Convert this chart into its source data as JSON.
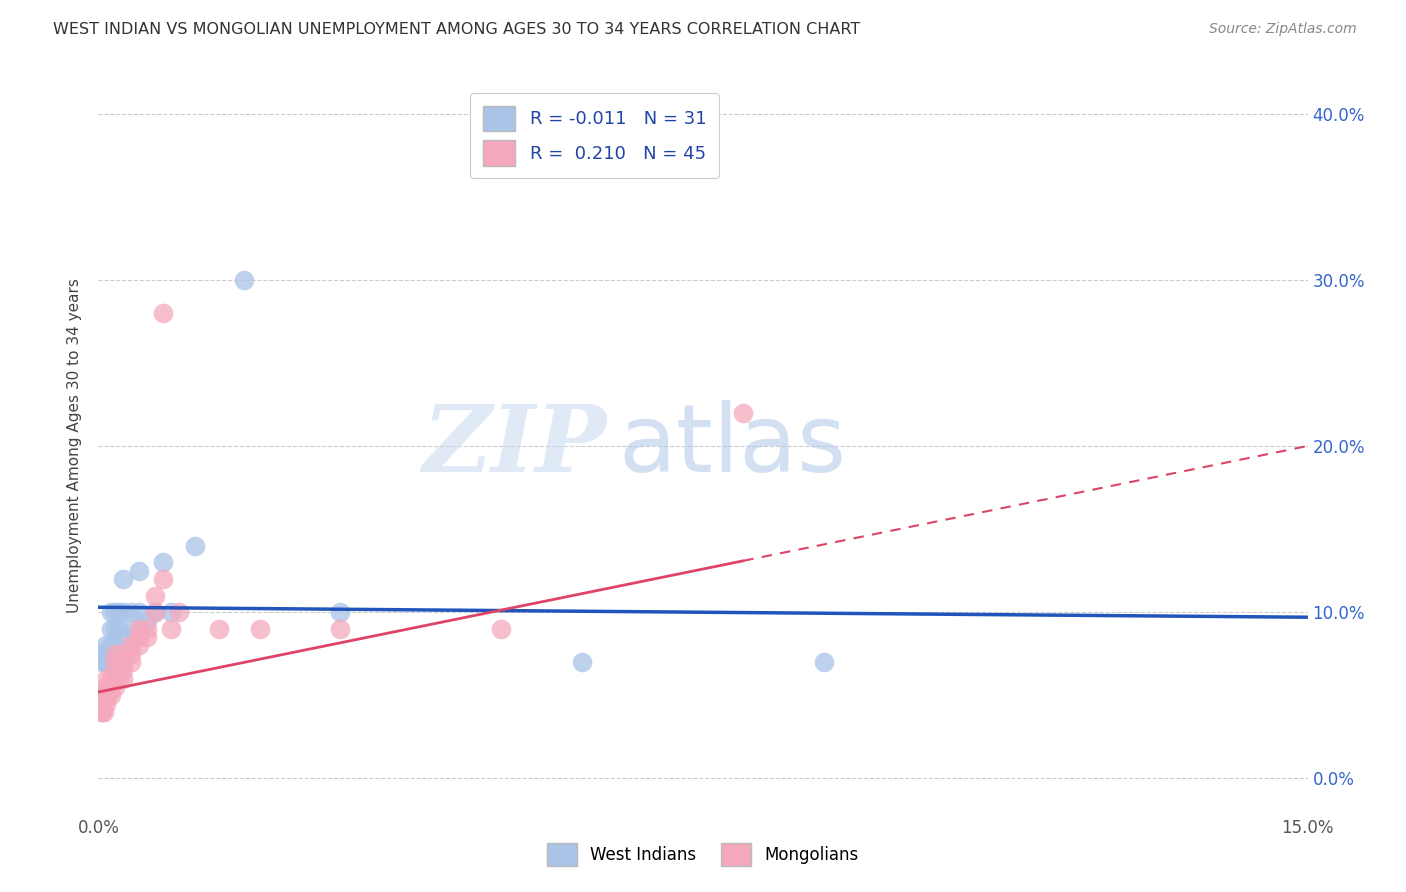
{
  "title": "WEST INDIAN VS MONGOLIAN UNEMPLOYMENT AMONG AGES 30 TO 34 YEARS CORRELATION CHART",
  "source": "Source: ZipAtlas.com",
  "ylabel": "Unemployment Among Ages 30 to 34 years",
  "xlim": [
    0.0,
    0.15
  ],
  "ylim": [
    -0.02,
    0.42
  ],
  "xticks": [
    0.0,
    0.03,
    0.06,
    0.09,
    0.12,
    0.15
  ],
  "yticks": [
    0.0,
    0.1,
    0.2,
    0.3,
    0.4
  ],
  "west_indian_R": -0.011,
  "west_indian_N": 31,
  "mongolian_R": 0.21,
  "mongolian_N": 45,
  "west_indian_color": "#aac4e8",
  "mongolian_color": "#f5a8bc",
  "west_indian_line_color": "#2255bb",
  "mongolian_line_color": "#dd4466",
  "background_color": "#ffffff",
  "watermark_zip": "ZIP",
  "watermark_atlas": "atlas",
  "west_indian_x": [
    0.0005,
    0.0005,
    0.0008,
    0.001,
    0.001,
    0.0012,
    0.0012,
    0.0015,
    0.0015,
    0.0015,
    0.002,
    0.002,
    0.002,
    0.0025,
    0.0025,
    0.003,
    0.003,
    0.003,
    0.004,
    0.004,
    0.005,
    0.005,
    0.006,
    0.007,
    0.008,
    0.009,
    0.012,
    0.018,
    0.03,
    0.06,
    0.09
  ],
  "west_indian_y": [
    0.07,
    0.075,
    0.07,
    0.075,
    0.08,
    0.07,
    0.075,
    0.08,
    0.09,
    0.1,
    0.08,
    0.09,
    0.1,
    0.09,
    0.1,
    0.085,
    0.1,
    0.12,
    0.09,
    0.1,
    0.1,
    0.125,
    0.095,
    0.1,
    0.13,
    0.1,
    0.14,
    0.3,
    0.1,
    0.07,
    0.07
  ],
  "mongolian_x": [
    0.0003,
    0.0003,
    0.0005,
    0.0005,
    0.0007,
    0.0007,
    0.001,
    0.001,
    0.001,
    0.001,
    0.0012,
    0.0012,
    0.0015,
    0.0015,
    0.0015,
    0.002,
    0.002,
    0.002,
    0.002,
    0.002,
    0.0025,
    0.0025,
    0.003,
    0.003,
    0.003,
    0.003,
    0.004,
    0.004,
    0.004,
    0.005,
    0.005,
    0.005,
    0.006,
    0.006,
    0.007,
    0.007,
    0.008,
    0.008,
    0.009,
    0.01,
    0.015,
    0.02,
    0.03,
    0.05,
    0.08
  ],
  "mongolian_y": [
    0.04,
    0.045,
    0.04,
    0.05,
    0.04,
    0.05,
    0.045,
    0.05,
    0.055,
    0.06,
    0.05,
    0.055,
    0.05,
    0.055,
    0.06,
    0.055,
    0.06,
    0.065,
    0.07,
    0.075,
    0.06,
    0.065,
    0.06,
    0.065,
    0.07,
    0.075,
    0.07,
    0.075,
    0.08,
    0.08,
    0.085,
    0.09,
    0.085,
    0.09,
    0.1,
    0.11,
    0.12,
    0.28,
    0.09,
    0.1,
    0.09,
    0.09,
    0.09,
    0.09,
    0.22
  ],
  "wi_line_x0": 0.0,
  "wi_line_x1": 0.15,
  "wi_line_y0": 0.103,
  "wi_line_y1": 0.097,
  "mo_line_x0": 0.0,
  "mo_line_x1": 0.15,
  "mo_line_y0": 0.052,
  "mo_line_y1": 0.2
}
